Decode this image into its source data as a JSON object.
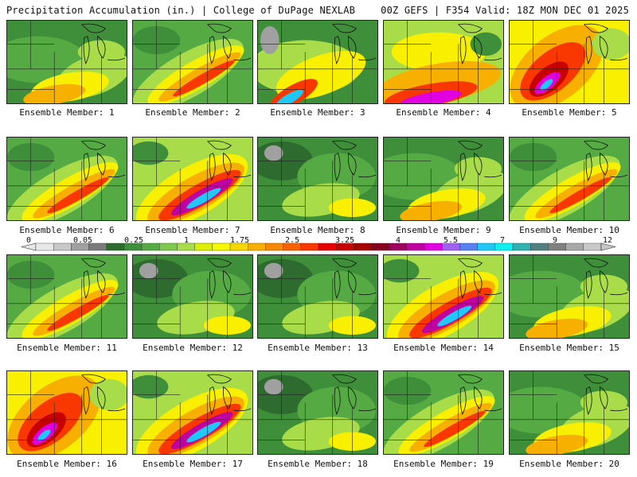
{
  "header": {
    "left": "Precipitation Accumulation (in.) | College of DuPage NEXLAB",
    "right": "00Z GEFS | F354 Valid: 18Z MON DEC 01 2025"
  },
  "members": [
    {
      "label": "Ensemble Member: 1",
      "style": "wet"
    },
    {
      "label": "Ensemble Member: 2",
      "style": "band"
    },
    {
      "label": "Ensemble Member: 3",
      "style": "sw"
    },
    {
      "label": "Ensemble Member: 4",
      "style": "southheavy"
    },
    {
      "label": "Ensemble Member: 5",
      "style": "swheavy"
    },
    {
      "label": "Ensemble Member: 6",
      "style": "band"
    },
    {
      "label": "Ensemble Member: 7",
      "style": "bandheavy"
    },
    {
      "label": "Ensemble Member: 8",
      "style": "dry"
    },
    {
      "label": "Ensemble Member: 9",
      "style": "wet"
    },
    {
      "label": "Ensemble Member: 10",
      "style": "band"
    },
    {
      "label": "Ensemble Member: 11",
      "style": "band"
    },
    {
      "label": "Ensemble Member: 12",
      "style": "dry"
    },
    {
      "label": "Ensemble Member: 13",
      "style": "dry"
    },
    {
      "label": "Ensemble Member: 14",
      "style": "bandheavy"
    },
    {
      "label": "Ensemble Member: 15",
      "style": "wet"
    },
    {
      "label": "Ensemble Member: 16",
      "style": "swheavy"
    },
    {
      "label": "Ensemble Member: 17",
      "style": "bandheavy"
    },
    {
      "label": "Ensemble Member: 18",
      "style": "dry"
    },
    {
      "label": "Ensemble Member: 19",
      "style": "band"
    },
    {
      "label": "Ensemble Member: 20",
      "style": "wet"
    }
  ],
  "legend": {
    "labels": [
      "0",
      "0.05",
      "0.25",
      "1",
      "1.75",
      "2.5",
      "3.25",
      "4",
      "5.5",
      "7",
      "9",
      "12"
    ],
    "colors": [
      "#e8e8e8",
      "#c8c8c8",
      "#a0a0a0",
      "#7a7a7a",
      "#2e6b2e",
      "#3f8f3a",
      "#55aa44",
      "#7ec850",
      "#a8dc48",
      "#ddf000",
      "#f8f800",
      "#f8d800",
      "#f8b000",
      "#f88800",
      "#f86000",
      "#f83800",
      "#e80000",
      "#c80000",
      "#a80000",
      "#880020",
      "#a00060",
      "#c000a0",
      "#e000e0",
      "#a060f0",
      "#5880f0",
      "#20c8f8",
      "#10f0f0",
      "#30b0b0",
      "#508080",
      "#808080",
      "#a8a8a8",
      "#c8c8c8"
    ]
  }
}
